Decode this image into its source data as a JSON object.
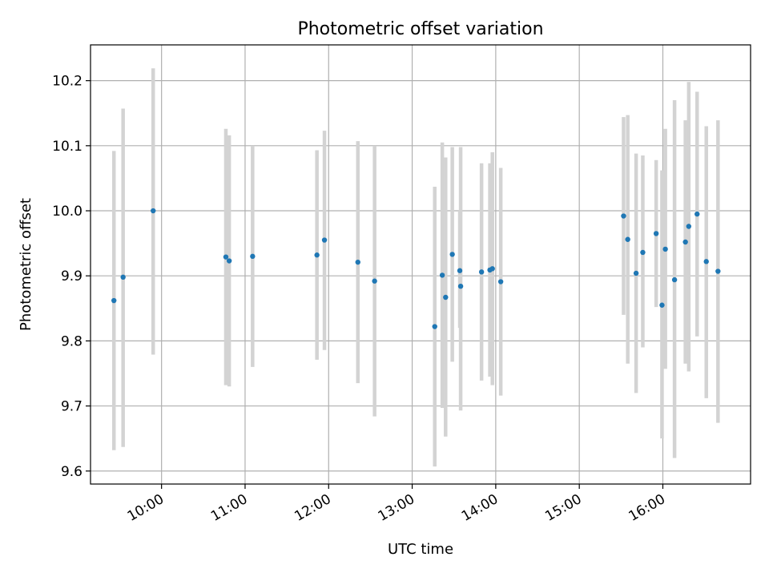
{
  "chart_data": {
    "type": "scatter",
    "title": "Photometric offset variation",
    "xlabel": "UTC time",
    "ylabel": "Photometric offset",
    "grid": true,
    "legend": "none",
    "xlim": [
      9.15,
      17.05
    ],
    "ylim": [
      9.58,
      10.255
    ],
    "x_ticks": [
      {
        "value": 10,
        "label": "10:00"
      },
      {
        "value": 11,
        "label": "11:00"
      },
      {
        "value": 12,
        "label": "12:00"
      },
      {
        "value": 13,
        "label": "13:00"
      },
      {
        "value": 14,
        "label": "14:00"
      },
      {
        "value": 15,
        "label": "15:00"
      },
      {
        "value": 16,
        "label": "16:00"
      }
    ],
    "y_ticks": [
      {
        "value": 9.6,
        "label": "9.6"
      },
      {
        "value": 9.7,
        "label": "9.7"
      },
      {
        "value": 9.8,
        "label": "9.8"
      },
      {
        "value": 9.9,
        "label": "9.9"
      },
      {
        "value": 10.0,
        "label": "10.0"
      },
      {
        "value": 10.1,
        "label": "10.1"
      },
      {
        "value": 10.2,
        "label": "10.2"
      }
    ],
    "colors": {
      "point": "#1f77b4",
      "errorbar": "#d3d3d3",
      "grid": "#b0b0b0"
    },
    "points": [
      {
        "t": 9.43,
        "y": 9.862,
        "lo": 9.632,
        "hi": 10.092
      },
      {
        "t": 9.54,
        "y": 9.898,
        "lo": 9.637,
        "hi": 10.157
      },
      {
        "t": 9.9,
        "y": 10.0,
        "lo": 9.779,
        "hi": 10.219
      },
      {
        "t": 10.77,
        "y": 9.929,
        "lo": 9.732,
        "hi": 10.126
      },
      {
        "t": 10.81,
        "y": 9.923,
        "lo": 9.73,
        "hi": 10.116
      },
      {
        "t": 11.09,
        "y": 9.93,
        "lo": 9.76,
        "hi": 10.1
      },
      {
        "t": 11.86,
        "y": 9.932,
        "lo": 9.771,
        "hi": 10.093
      },
      {
        "t": 11.95,
        "y": 9.955,
        "lo": 9.786,
        "hi": 10.123
      },
      {
        "t": 12.35,
        "y": 9.921,
        "lo": 9.735,
        "hi": 10.107
      },
      {
        "t": 12.55,
        "y": 9.892,
        "lo": 9.684,
        "hi": 10.1
      },
      {
        "t": 13.27,
        "y": 9.822,
        "lo": 9.607,
        "hi": 10.037
      },
      {
        "t": 13.36,
        "y": 9.901,
        "lo": 9.697,
        "hi": 10.105
      },
      {
        "t": 13.4,
        "y": 9.867,
        "lo": 9.653,
        "hi": 10.082
      },
      {
        "t": 13.48,
        "y": 9.933,
        "lo": 9.768,
        "hi": 10.098
      },
      {
        "t": 13.57,
        "y": 9.908,
        "lo": 9.82,
        "hi": 10.0
      },
      {
        "t": 13.58,
        "y": 9.884,
        "lo": 9.693,
        "hi": 10.098
      },
      {
        "t": 13.83,
        "y": 9.906,
        "lo": 9.739,
        "hi": 10.073
      },
      {
        "t": 13.93,
        "y": 9.909,
        "lo": 9.745,
        "hi": 10.073
      },
      {
        "t": 13.96,
        "y": 9.911,
        "lo": 9.732,
        "hi": 10.09
      },
      {
        "t": 14.06,
        "y": 9.891,
        "lo": 9.716,
        "hi": 10.066
      },
      {
        "t": 15.53,
        "y": 9.992,
        "lo": 9.84,
        "hi": 10.144
      },
      {
        "t": 15.58,
        "y": 9.956,
        "lo": 9.765,
        "hi": 10.147
      },
      {
        "t": 15.68,
        "y": 9.904,
        "lo": 9.72,
        "hi": 10.088
      },
      {
        "t": 15.76,
        "y": 9.936,
        "lo": 9.79,
        "hi": 10.085
      },
      {
        "t": 15.92,
        "y": 9.965,
        "lo": 9.852,
        "hi": 10.078
      },
      {
        "t": 15.99,
        "y": 9.855,
        "lo": 9.65,
        "hi": 10.062
      },
      {
        "t": 16.03,
        "y": 9.941,
        "lo": 9.757,
        "hi": 10.126
      },
      {
        "t": 16.14,
        "y": 9.894,
        "lo": 9.62,
        "hi": 10.17
      },
      {
        "t": 16.27,
        "y": 9.952,
        "lo": 9.765,
        "hi": 10.139
      },
      {
        "t": 16.31,
        "y": 9.976,
        "lo": 9.753,
        "hi": 10.198
      },
      {
        "t": 16.41,
        "y": 9.995,
        "lo": 9.807,
        "hi": 10.183
      },
      {
        "t": 16.52,
        "y": 9.922,
        "lo": 9.712,
        "hi": 10.13
      },
      {
        "t": 16.66,
        "y": 9.907,
        "lo": 9.674,
        "hi": 10.139
      }
    ]
  }
}
